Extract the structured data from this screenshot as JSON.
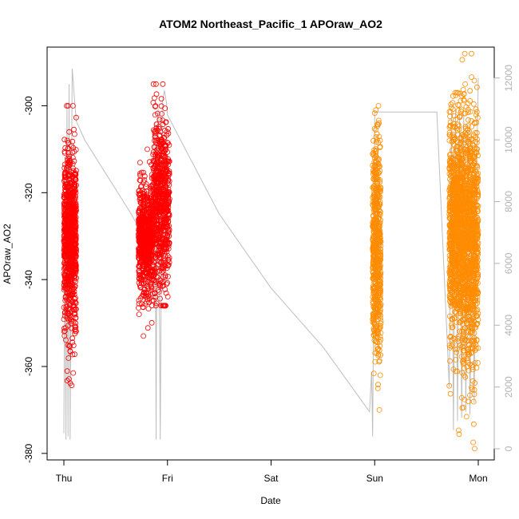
{
  "chart_data": {
    "type": "scatter",
    "title": "ATOM2 Northeast_Pacific_1 APOraw_AO2",
    "xlabel": "Date",
    "ylabel": "APOraw_AO2",
    "x_tick_labels": [
      "Thu",
      "Fri",
      "Sat",
      "Sun",
      "Mon"
    ],
    "xlim": [
      0,
      4
    ],
    "ylim": [
      -381.5,
      -286.5
    ],
    "y_ticks": [
      -300,
      -320,
      -340,
      -360,
      -380
    ],
    "y2_ticks": [
      0,
      2000,
      4000,
      6000,
      8000,
      10000,
      12000
    ],
    "y2lim": [
      -360,
      13000
    ],
    "grid": false,
    "legend": "none",
    "colors": {
      "series_a": "#ff0000",
      "series_b": "#ff8c00",
      "line": "#bebebe",
      "right_axis": "#b3b3b3"
    },
    "series": [
      {
        "color": "#ff0000",
        "clusters": [
          {
            "x_start": 0.0,
            "x_end": 0.12,
            "y_center": -331,
            "y_spread": 10,
            "y_min": -367,
            "y_max": -300,
            "count": 900
          },
          {
            "x_start": 0.72,
            "x_end": 0.86,
            "y_center": -331,
            "y_spread": 6,
            "y_min": -353,
            "y_max": -310,
            "count": 700
          },
          {
            "x_start": 0.86,
            "x_end": 1.02,
            "y_center": -323,
            "y_spread": 10,
            "y_min": -346,
            "y_max": -295,
            "count": 700
          }
        ]
      },
      {
        "color": "#ff8c00",
        "clusters": [
          {
            "x_start": 2.98,
            "x_end": 3.06,
            "y_center": -333,
            "y_spread": 13,
            "y_min": -372,
            "y_max": -300,
            "count": 600
          },
          {
            "x_start": 3.72,
            "x_end": 3.84,
            "y_center": -328,
            "y_spread": 12,
            "y_min": -377,
            "y_max": -297,
            "count": 900
          },
          {
            "x_start": 3.84,
            "x_end": 4.0,
            "y_center": -331,
            "y_spread": 14,
            "y_min": -380,
            "y_max": -288,
            "count": 1100
          }
        ]
      }
    ],
    "line_series": {
      "color": "#bebebe",
      "x": [
        0.0,
        0.01,
        0.02,
        0.03,
        0.04,
        0.05,
        0.06,
        0.07,
        0.08,
        0.09,
        0.1,
        0.11,
        0.12,
        0.2,
        0.35,
        0.5,
        0.65,
        0.75,
        0.8,
        0.85,
        0.87,
        0.88,
        0.89,
        0.9,
        0.91,
        0.93,
        0.95,
        0.97,
        0.99,
        1.0,
        1.5,
        2.0,
        2.5,
        2.95,
        2.97,
        2.98,
        2.99,
        3.0,
        3.02,
        3.04,
        3.06,
        3.3,
        3.6,
        3.72,
        3.74,
        3.76,
        3.78,
        3.8,
        3.82,
        3.84,
        3.86,
        3.88,
        3.9,
        3.92,
        3.94,
        3.96,
        3.98,
        4.0
      ],
      "y": [
        500,
        8000,
        300,
        11200,
        400,
        11800,
        300,
        7000,
        12300,
        11900,
        11400,
        11000,
        10600,
        10000,
        9200,
        8400,
        7600,
        7000,
        6800,
        6500,
        10200,
        10600,
        300,
        10400,
        11000,
        300,
        11200,
        11600,
        11200,
        10800,
        7600,
        5200,
        3300,
        1200,
        2500,
        400,
        5200,
        10900,
        10900,
        10900,
        10900,
        10900,
        10900,
        2000,
        10800,
        600,
        11000,
        900,
        10800,
        1000,
        10900,
        1200,
        10500,
        1100,
        9000,
        1500,
        8000,
        12000
      ]
    }
  }
}
